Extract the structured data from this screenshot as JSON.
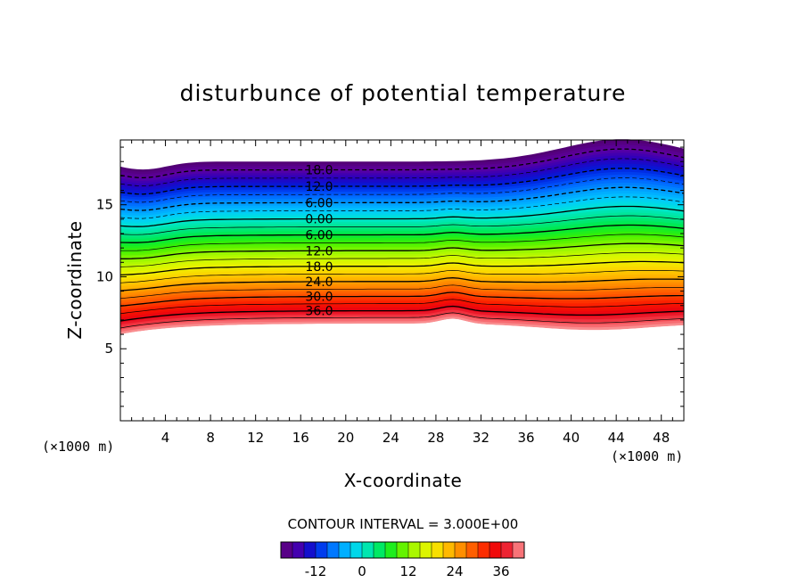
{
  "chart_data": {
    "type": "contour",
    "title": "disturbunce of potential temperature",
    "xlabel": "X-coordinate",
    "ylabel": "Z-coordinate",
    "x_unit": "(×1000 m)",
    "y_unit": "(×1000 m)",
    "xlim": [
      0,
      50
    ],
    "ylim": [
      0,
      19.5
    ],
    "x_ticks": [
      "4",
      "8",
      "12",
      "16",
      "20",
      "24",
      "28",
      "32",
      "36",
      "40",
      "44",
      "48"
    ],
    "y_ticks": [
      "5",
      "10",
      "15"
    ],
    "contour_interval_text": "CONTOUR INTERVAL = 3.000E+00",
    "contour_labels": [
      "18.0",
      "12.0",
      "6.00",
      "0.00",
      "6.00",
      "12.0",
      "18.0",
      "24.0",
      "30.0",
      "36.0"
    ],
    "colorbar": {
      "range": [
        -21,
        42
      ],
      "ticks": [
        "-12",
        "0",
        "12",
        "24",
        "36"
      ]
    }
  }
}
